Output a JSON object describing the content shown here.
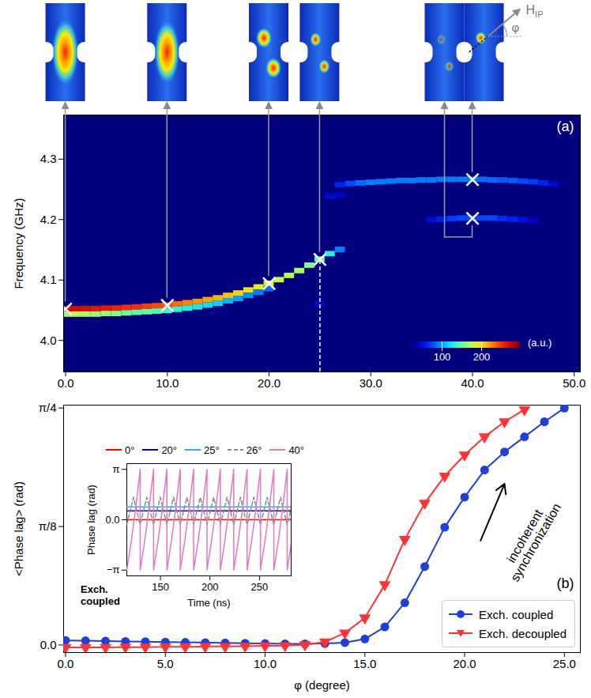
{
  "chart_data": [
    {
      "type": "heatmap",
      "panel_label": "(a)",
      "y_label": "Frequency (GHz)",
      "xlim": [
        -0.2,
        50.6
      ],
      "xticks": [
        {
          "value": 0,
          "label": "0.0"
        },
        {
          "value": 10,
          "label": "10.0"
        },
        {
          "value": 20,
          "label": "20.0"
        },
        {
          "value": 30,
          "label": "30.0"
        },
        {
          "value": 40,
          "label": "40.0"
        },
        {
          "value": 50,
          "label": "50.0"
        }
      ],
      "ylim": [
        3.948,
        4.373
      ],
      "yticks": [
        {
          "value": 4.0,
          "label": "4.0"
        },
        4.1,
        4.2,
        4.3
      ],
      "cells": {
        "x": [
          0,
          1,
          2,
          3,
          4,
          5,
          6,
          7,
          8,
          9,
          10,
          11,
          12,
          13,
          14,
          15,
          16,
          17,
          18,
          19,
          20,
          21,
          22,
          23,
          24,
          25,
          26,
          27,
          0,
          1,
          2,
          3,
          4,
          5,
          6,
          7,
          8,
          9,
          10,
          11,
          12,
          13,
          14,
          15,
          16,
          17,
          18,
          19,
          20,
          25,
          26,
          27,
          27,
          28,
          29,
          30,
          31,
          32,
          33,
          34,
          35,
          36,
          37,
          38,
          39,
          40,
          41,
          42,
          43,
          44,
          45,
          46,
          47,
          48,
          36,
          37,
          38,
          39,
          40,
          41,
          42,
          43,
          44,
          45,
          46
        ],
        "y": [
          4.052,
          4.052,
          4.052,
          4.052,
          4.053,
          4.053,
          4.054,
          4.055,
          4.056,
          4.057,
          4.058,
          4.06,
          4.062,
          4.064,
          4.067,
          4.07,
          4.074,
          4.078,
          4.083,
          4.088,
          4.094,
          4.1,
          4.107,
          4.115,
          4.124,
          4.134,
          4.143,
          4.15,
          4.043,
          4.043,
          4.043,
          4.043,
          4.044,
          4.044,
          4.045,
          4.046,
          4.047,
          4.048,
          4.049,
          4.051,
          4.053,
          4.055,
          4.058,
          4.061,
          4.065,
          4.069,
          4.074,
          4.079,
          4.085,
          4.06,
          4.238,
          4.24,
          4.257,
          4.259,
          4.26,
          4.261,
          4.262,
          4.263,
          4.264,
          4.264,
          4.265,
          4.265,
          4.266,
          4.266,
          4.266,
          4.266,
          4.266,
          4.265,
          4.265,
          4.264,
          4.263,
          4.262,
          4.26,
          4.258,
          4.199,
          4.2,
          4.201,
          4.202,
          4.202,
          4.202,
          4.202,
          4.201,
          4.2,
          4.199,
          4.198
        ],
        "values": [
          270,
          275,
          270,
          265,
          265,
          260,
          255,
          255,
          250,
          245,
          240,
          235,
          230,
          225,
          220,
          215,
          210,
          205,
          200,
          195,
          185,
          180,
          175,
          170,
          160,
          150,
          130,
          90,
          170,
          175,
          170,
          165,
          165,
          160,
          155,
          150,
          150,
          145,
          140,
          135,
          130,
          125,
          120,
          115,
          105,
          100,
          95,
          90,
          85,
          45,
          45,
          40,
          60,
          75,
          85,
          90,
          90,
          90,
          90,
          90,
          90,
          90,
          90,
          90,
          90,
          90,
          85,
          85,
          80,
          80,
          75,
          70,
          60,
          45,
          45,
          60,
          70,
          75,
          75,
          75,
          75,
          65,
          60,
          50,
          40
        ],
        "width": 1,
        "height": 0.009
      },
      "colorbar": {
        "range": [
          20,
          300
        ],
        "ticks": [
          100,
          200
        ],
        "label": "(a.u.)"
      },
      "markers": {
        "x": [
          0,
          10,
          20,
          25,
          40,
          40
        ],
        "y": [
          4.052,
          4.058,
          4.094,
          4.134,
          4.202,
          4.266
        ],
        "marker": "x",
        "color": "white"
      },
      "reference_line": {
        "x": 25,
        "y": [
          3.948,
          4.134
        ],
        "line_style": "dashed",
        "color": "white"
      },
      "mode_images": {
        "field_label": {
          "text": "H",
          "subscript": "IP"
        },
        "angle_label": "φ"
      }
    },
    {
      "type": "line",
      "panel_label": "(b)",
      "x_label": "φ (degree)",
      "y_label": "<Phase lag> (rad)",
      "xlim": [
        -0.1,
        25.8
      ],
      "xticks": [
        {
          "value": 0,
          "label": "0.0"
        },
        {
          "value": 5,
          "label": "5.0"
        },
        {
          "value": 10,
          "label": "10.0"
        },
        {
          "value": 15,
          "label": "15.0"
        },
        {
          "value": 20,
          "label": "20.0"
        },
        {
          "value": 25,
          "label": "25.0"
        }
      ],
      "ylim": [
        -0.025,
        0.795
      ],
      "yticks": [
        {
          "value": 0,
          "label": "0.0"
        },
        {
          "value": 0.3927,
          "label": "π/8"
        },
        {
          "value": 0.7854,
          "label": "π/4"
        }
      ],
      "legend": "lower right",
      "series": [
        {
          "name": "Exch. coupled",
          "color": "#1f3fd8",
          "marker": "circle",
          "x": [
            0,
            1,
            2,
            3,
            4,
            5,
            6,
            7,
            8,
            9,
            10,
            11,
            12,
            13,
            14,
            15,
            16,
            17,
            18,
            19,
            20,
            21,
            22,
            23,
            24,
            25
          ],
          "values": [
            0.015,
            0.014,
            0.013,
            0.012,
            0.011,
            0.01,
            0.009,
            0.008,
            0.007,
            0.006,
            0.005,
            0.004,
            0.004,
            0.005,
            0.008,
            0.02,
            0.06,
            0.14,
            0.26,
            0.39,
            0.49,
            0.58,
            0.64,
            0.69,
            0.74,
            0.785
          ]
        },
        {
          "name": "Exch. decoupled",
          "color": "#ff3333",
          "marker": "triangle-down",
          "x": [
            0,
            1,
            2,
            3,
            4,
            5,
            6,
            7,
            8,
            9,
            10,
            11,
            12,
            13,
            14,
            15,
            16,
            17,
            18,
            19,
            20,
            21,
            22,
            23
          ],
          "values": [
            -0.008,
            -0.008,
            -0.008,
            -0.007,
            -0.007,
            -0.006,
            -0.006,
            -0.005,
            -0.005,
            -0.004,
            -0.003,
            -0.002,
            0.001,
            0.01,
            0.04,
            0.09,
            0.2,
            0.35,
            0.47,
            0.56,
            0.63,
            0.69,
            0.74,
            0.78
          ]
        }
      ],
      "annotations": [
        {
          "text": "incoherent synchronization",
          "x": 23.3,
          "y": 0.35,
          "arrow": {
            "x1": 20.8,
            "y1": 0.346,
            "x2": 22.0,
            "y2": 0.534
          }
        }
      ]
    },
    {
      "type": "line",
      "x_label": "Time (ns)",
      "y_label": "Phase lag (rad)",
      "note": "Exch. coupled",
      "xlim": [
        116,
        282
      ],
      "xticks": [
        150,
        200,
        250
      ],
      "ylim": [
        -3.5,
        3.5
      ],
      "yticks": [
        {
          "value": -3.1416,
          "label": "−π"
        },
        {
          "value": 0,
          "label": "0.0"
        },
        {
          "value": 3.1416,
          "label": "π"
        }
      ],
      "legend": "top",
      "series": [
        {
          "name": "0°",
          "color": "#ff0000",
          "line_style": "solid",
          "x": [
            116,
            282
          ],
          "values": [
            0,
            0
          ]
        },
        {
          "name": "20°",
          "color": "#0000cd",
          "line_style": "solid",
          "x": [
            116,
            282
          ],
          "values": [
            0.55,
            0.55
          ]
        },
        {
          "name": "25°",
          "color": "#22b8e6",
          "line_style": "solid",
          "x": [
            116,
            282
          ],
          "values": [
            0.8,
            0.8
          ]
        },
        {
          "name": "26°",
          "color": "#888888",
          "line_style": "dashed",
          "x": [
            116,
            122.75,
            129.5,
            136.25,
            143,
            149.75,
            156.5,
            163.25,
            170,
            176.75,
            183.5,
            190.25,
            197,
            203.75,
            210.5,
            217.25,
            224,
            230.75,
            237.5,
            244.25,
            251,
            257.75,
            264.5,
            271.25,
            278,
            284.75
          ],
          "values": [
            -0.3,
            1.4,
            -0.3,
            1.4,
            -0.3,
            1.4,
            -0.3,
            1.4,
            -0.3,
            1.4,
            -0.3,
            1.4,
            -0.3,
            1.4,
            -0.3,
            1.4,
            -0.3,
            1.4,
            -0.3,
            1.4,
            -0.3,
            1.4,
            -0.3,
            1.4,
            -0.3,
            1.4
          ]
        },
        {
          "name": "40°",
          "color": "#e377c2",
          "line_style": "solid",
          "x": [
            116,
            120.5,
            125,
            129.5,
            129.5,
            134,
            138.5,
            143,
            143,
            147.5,
            152,
            156.5,
            156.5,
            161,
            165.5,
            170,
            170,
            174.5,
            179,
            183.5,
            183.5,
            188,
            192.5,
            197,
            197,
            201.5,
            206,
            210.5,
            210.5,
            215,
            219.5,
            224,
            224,
            228.5,
            233,
            237.5,
            237.5,
            242,
            246.5,
            251,
            251,
            255.5,
            260,
            264.5,
            264.5,
            269,
            273.5,
            278,
            278,
            282.5
          ],
          "values": [
            -3.14,
            -1.35,
            0.75,
            3.14,
            -3.14,
            -1.35,
            0.75,
            3.14,
            -3.14,
            -1.35,
            0.75,
            3.14,
            -3.14,
            -1.35,
            0.75,
            3.14,
            -3.14,
            -1.35,
            0.75,
            3.14,
            -3.14,
            -1.35,
            0.75,
            3.14,
            -3.14,
            -1.35,
            0.75,
            3.14,
            -3.14,
            -1.35,
            0.75,
            3.14,
            -3.14,
            -1.35,
            0.75,
            3.14,
            -3.14,
            -1.35,
            0.75,
            3.14,
            -3.14,
            -1.35,
            0.75,
            3.14,
            -3.14,
            -1.35,
            0.75,
            3.14,
            -3.14,
            -1.35
          ]
        }
      ]
    }
  ]
}
